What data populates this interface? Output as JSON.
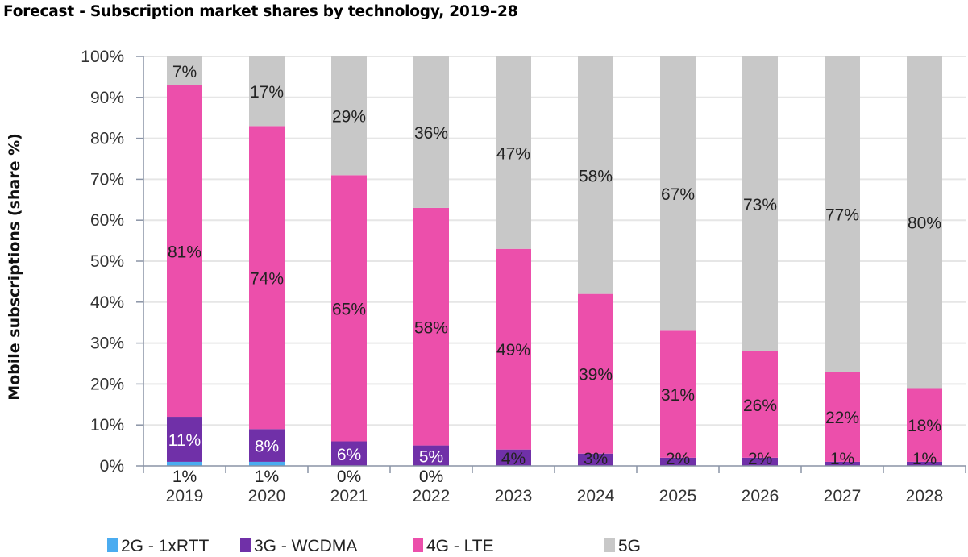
{
  "title": "Forecast - Subscription market shares by technology, 2019–28",
  "chart_data": {
    "type": "bar",
    "stacked": true,
    "title": "Forecast - Subscription market shares by technology, 2019–28",
    "xlabel": "",
    "ylabel": "Mobile subscriptions (share %)",
    "ylim": [
      0,
      100
    ],
    "yticks": [
      "0%",
      "10%",
      "20%",
      "30%",
      "40%",
      "50%",
      "60%",
      "70%",
      "80%",
      "90%",
      "100%"
    ],
    "grid": true,
    "legend_position": "bottom",
    "categories": [
      "2019",
      "2020",
      "2021",
      "2022",
      "2023",
      "2024",
      "2025",
      "2026",
      "2027",
      "2028"
    ],
    "series": [
      {
        "name": "2G - 1xRTT",
        "color": "#4bacf0",
        "label_color": "#222222",
        "values": [
          1,
          1,
          0,
          0,
          0,
          0,
          0,
          0,
          0,
          0
        ],
        "labels": [
          "1%",
          "1%",
          "0%",
          "0%",
          "",
          "",
          "",
          "",
          "",
          ""
        ]
      },
      {
        "name": "3G - WCDMA",
        "color": "#7030a8",
        "label_color": "#ffffff",
        "values": [
          11,
          8,
          6,
          5,
          4,
          3,
          2,
          2,
          1,
          1
        ],
        "labels": [
          "11%",
          "8%",
          "6%",
          "5%",
          "4%",
          "3%",
          "2%",
          "2%",
          "1%",
          "1%"
        ]
      },
      {
        "name": "4G - LTE",
        "color": "#ec4fab",
        "label_color": "#222222",
        "values": [
          81,
          74,
          65,
          58,
          49,
          39,
          31,
          26,
          22,
          18
        ],
        "labels": [
          "81%",
          "74%",
          "65%",
          "58%",
          "49%",
          "39%",
          "31%",
          "26%",
          "22%",
          "18%"
        ]
      },
      {
        "name": "5G",
        "color": "#c8c8c8",
        "label_color": "#222222",
        "values": [
          7,
          17,
          29,
          36,
          47,
          58,
          67,
          73,
          77,
          80
        ],
        "labels": [
          "7%",
          "17%",
          "29%",
          "36%",
          "47%",
          "58%",
          "67%",
          "73%",
          "77%",
          "80%"
        ]
      }
    ]
  }
}
